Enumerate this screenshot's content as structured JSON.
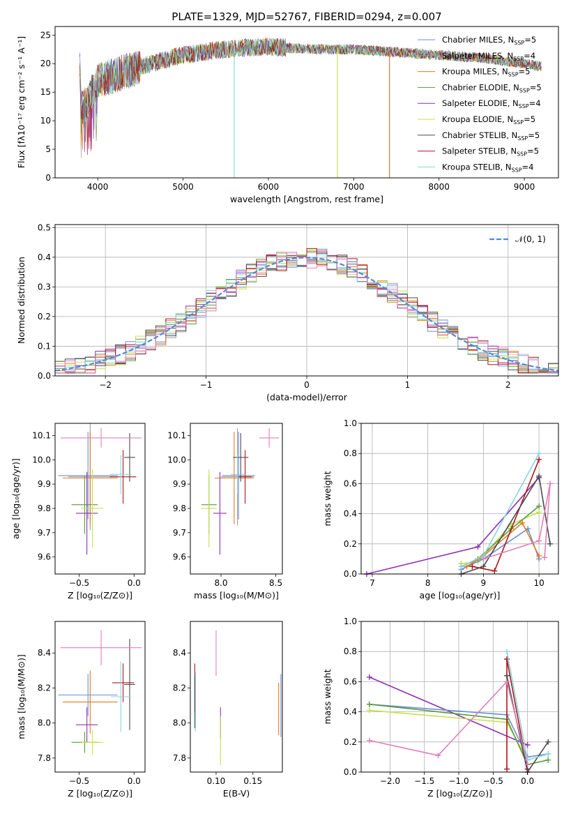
{
  "title": "PLATE=1329, MJD=52767, FIBERID=0294, z=0.007",
  "colors": {
    "Chabrier MILES": "#6a8fd6",
    "Salpeter MILES": "#9e9e9e",
    "Kroupa MILES": "#e07b20",
    "Chabrier ELODIE": "#5a9a3a",
    "Salpeter ELODIE": "#8e2fb5",
    "Kroupa ELODIE": "#c8e04a",
    "Chabrier STELIB": "#4a4a4a",
    "Salpeter STELIB": "#b0141a",
    "Kroupa STELIB": "#86d6e0",
    "pink": "#e07fb8",
    "normal": "#4f8bd6"
  },
  "chart_data": [
    {
      "id": "spectrum",
      "type": "line",
      "title": "PLATE=1329, MJD=52767, FIBERID=0294, z=0.007",
      "xlabel": "wavelength [Angstrom, rest frame]",
      "ylabel": "Flux [fλ10⁻¹⁷ erg cm⁻² s⁻¹ A⁻¹]",
      "xlim": [
        3500,
        9400
      ],
      "ylim": [
        0,
        26.5
      ],
      "xticks": [
        "4000",
        "5000",
        "6000",
        "7000",
        "8000",
        "9000"
      ],
      "yticks": [
        "0",
        "5",
        "10",
        "15",
        "20",
        "25"
      ],
      "legend_position": "top-right",
      "legend": [
        {
          "name": "Chabrier MILES",
          "ssp": "5"
        },
        {
          "name": "Salpeter MILES",
          "ssp": "4"
        },
        {
          "name": "Kroupa MILES",
          "ssp": "5"
        },
        {
          "name": "Chabrier ELODIE",
          "ssp": "5"
        },
        {
          "name": "Salpeter ELODIE",
          "ssp": "4"
        },
        {
          "name": "Kroupa ELODIE",
          "ssp": "5"
        },
        {
          "name": "Chabrier STELIB",
          "ssp": "5"
        },
        {
          "name": "Salpeter STELIB",
          "ssp": "5"
        },
        {
          "name": "Kroupa STELIB",
          "ssp": "4"
        }
      ],
      "continuum": [
        [
          3800,
          12
        ],
        [
          3900,
          14
        ],
        [
          4000,
          17
        ],
        [
          4200,
          18
        ],
        [
          4500,
          19.5
        ],
        [
          5000,
          21.5
        ],
        [
          5500,
          22.5
        ],
        [
          6000,
          23
        ],
        [
          6500,
          22.5
        ],
        [
          7000,
          22.5
        ],
        [
          7500,
          22
        ],
        [
          8000,
          21.5
        ],
        [
          8500,
          21
        ],
        [
          9000,
          20
        ],
        [
          9200,
          19.5
        ]
      ],
      "dips": [
        {
          "x": 5600,
          "y": 0,
          "series": "Kroupa STELIB"
        },
        {
          "x": 6810,
          "y": 0,
          "series": "Kroupa ELODIE"
        },
        {
          "x": 7420,
          "y": 0,
          "series": "Kroupa MILES"
        }
      ]
    },
    {
      "id": "residuals",
      "type": "bar",
      "xlabel": "(data-model)/error",
      "ylabel": "Normed distribution",
      "xlim": [
        -2.5,
        2.5
      ],
      "ylim": [
        0,
        0.51
      ],
      "xticks": [
        "−2",
        "−1",
        "0",
        "1",
        "2"
      ],
      "yticks": [
        "0.0",
        "0.1",
        "0.2",
        "0.3",
        "0.4",
        "0.5"
      ],
      "bin_width": 0.1,
      "bin_start": -2.5,
      "legend": "𝒩(0, 1)",
      "legend_position": "top-right"
    },
    {
      "id": "age-vs-Z",
      "type": "scatter",
      "xlabel": "Z [log₁₀(Z/Z⊙)]",
      "ylabel": "age  [log₁₀(age/yr)]",
      "xlim": [
        -0.72,
        0.1
      ],
      "ylim": [
        9.53,
        10.15
      ],
      "xticks": [
        "−0.5",
        "0.0"
      ],
      "yticks": [
        "9.6",
        "9.7",
        "9.8",
        "9.9",
        "10.0",
        "10.1"
      ],
      "points": [
        {
          "series": "Chabrier MILES",
          "x": -0.42,
          "xerr": 0.27,
          "y": 9.935,
          "yerr": 0.18
        },
        {
          "series": "Salpeter MILES",
          "x": -0.4,
          "xerr": 0.2,
          "y": 9.93,
          "yerr": 0.22
        },
        {
          "series": "Kroupa MILES",
          "x": -0.4,
          "xerr": 0.25,
          "y": 9.925,
          "yerr": 0.19
        },
        {
          "series": "Chabrier ELODIE",
          "x": -0.45,
          "xerr": 0.12,
          "y": 9.815,
          "yerr": 0.12
        },
        {
          "series": "Salpeter ELODIE",
          "x": -0.43,
          "xerr": 0.1,
          "y": 9.78,
          "yerr": 0.17
        },
        {
          "series": "Kroupa ELODIE",
          "x": -0.38,
          "xerr": 0.1,
          "y": 9.8,
          "yerr": 0.16
        },
        {
          "series": "Chabrier STELIB",
          "x": -0.04,
          "xerr": 0.05,
          "y": 10.01,
          "yerr": 0.1
        },
        {
          "series": "Salpeter STELIB",
          "x": -0.1,
          "xerr": 0.12,
          "y": 9.93,
          "yerr": 0.11
        },
        {
          "series": "Kroupa STELIB",
          "x": -0.12,
          "xerr": 0.1,
          "y": 9.94,
          "yerr": 0.08
        },
        {
          "series": "pink",
          "x": -0.3,
          "xerr": 0.37,
          "y": 10.09,
          "yerr": 0.04
        }
      ]
    },
    {
      "id": "age-vs-mass",
      "type": "scatter",
      "xlabel": "mass [log₁₀(M/M⊙)]",
      "ylabel": "",
      "xlim": [
        7.72,
        8.56
      ],
      "ylim": [
        9.53,
        10.15
      ],
      "xticks": [
        "8.0",
        "8.5"
      ],
      "yticks": [
        "9.6",
        "9.7",
        "9.8",
        "9.9",
        "10.0",
        "10.1"
      ],
      "points": [
        {
          "series": "Chabrier MILES",
          "x": 8.16,
          "xerr": 0.15,
          "y": 9.935,
          "yerr": 0.18
        },
        {
          "series": "Salpeter MILES",
          "x": 8.15,
          "xerr": 0.15,
          "y": 9.93,
          "yerr": 0.2
        },
        {
          "series": "Kroupa MILES",
          "x": 8.12,
          "xerr": 0.18,
          "y": 9.925,
          "yerr": 0.19
        },
        {
          "series": "Chabrier ELODIE",
          "x": 7.89,
          "xerr": 0.07,
          "y": 9.815,
          "yerr": 0.12
        },
        {
          "series": "Salpeter ELODIE",
          "x": 7.99,
          "xerr": 0.06,
          "y": 9.78,
          "yerr": 0.17
        },
        {
          "series": "Kroupa ELODIE",
          "x": 7.89,
          "xerr": 0.07,
          "y": 9.8,
          "yerr": 0.16
        },
        {
          "series": "Chabrier STELIB",
          "x": 8.18,
          "xerr": 0.07,
          "y": 10.01,
          "yerr": 0.1
        },
        {
          "series": "Salpeter STELIB",
          "x": 8.22,
          "xerr": 0.06,
          "y": 9.93,
          "yerr": 0.11
        },
        {
          "series": "Kroupa STELIB",
          "x": 8.15,
          "xerr": 0.06,
          "y": 9.94,
          "yerr": 0.08
        },
        {
          "series": "pink",
          "x": 8.44,
          "xerr": 0.09,
          "y": 10.09,
          "yerr": 0.04
        }
      ]
    },
    {
      "id": "weight-vs-age",
      "type": "line",
      "xlabel": "age  [log₁₀(age/yr)]",
      "ylabel": "mass weight",
      "xlim": [
        6.8,
        10.35
      ],
      "ylim": [
        0,
        1
      ],
      "xticks": [
        "7",
        "8",
        "9",
        "10"
      ],
      "yticks": [
        "0.0",
        "0.2",
        "0.4",
        "0.6",
        "0.8",
        "1.0"
      ],
      "series": [
        {
          "name": "Salpeter ELODIE",
          "points": [
            [
              6.9,
              0.0
            ],
            [
              8.9,
              0.18
            ],
            [
              10.0,
              0.64
            ]
          ]
        },
        {
          "name": "Kroupa ELODIE",
          "points": [
            [
              8.6,
              0.07
            ],
            [
              8.9,
              0.08
            ],
            [
              9.5,
              0.33
            ],
            [
              10.0,
              0.41
            ]
          ]
        },
        {
          "name": "Chabrier ELODIE",
          "points": [
            [
              8.6,
              0.05
            ],
            [
              8.9,
              0.1
            ],
            [
              9.5,
              0.3
            ],
            [
              10.0,
              0.45
            ]
          ]
        },
        {
          "name": "Chabrier MILES",
          "points": [
            [
              8.6,
              0.03
            ],
            [
              9.0,
              0.1
            ],
            [
              9.8,
              0.3
            ],
            [
              10.0,
              0.1
            ]
          ]
        },
        {
          "name": "Kroupa MILES",
          "points": [
            [
              8.7,
              0.05
            ],
            [
              9.0,
              0.12
            ],
            [
              9.7,
              0.34
            ],
            [
              10.0,
              0.12
            ]
          ]
        },
        {
          "name": "Salpeter STELIB",
          "points": [
            [
              8.8,
              0.05
            ],
            [
              9.2,
              0.02
            ],
            [
              10.0,
              0.76
            ]
          ]
        },
        {
          "name": "Chabrier STELIB",
          "points": [
            [
              8.6,
              0.0
            ],
            [
              9.0,
              0.05
            ],
            [
              10.0,
              0.65
            ],
            [
              10.2,
              0.2
            ]
          ]
        },
        {
          "name": "Kroupa STELIB",
          "points": [
            [
              8.6,
              0.05
            ],
            [
              9.0,
              0.12
            ],
            [
              10.0,
              0.8
            ]
          ]
        },
        {
          "name": "pink",
          "points": [
            [
              9.0,
              0.1
            ],
            [
              10.0,
              0.22
            ],
            [
              10.2,
              0.6
            ],
            [
              10.1,
              0.11
            ]
          ]
        }
      ]
    },
    {
      "id": "mass-vs-Z",
      "type": "scatter",
      "xlabel": "Z [log₁₀(Z/Z⊙)]",
      "ylabel": "mass [log₁₀(M/M⊙)]",
      "xlim": [
        -0.72,
        0.1
      ],
      "ylim": [
        7.72,
        8.58
      ],
      "xticks": [
        "−0.5",
        "0.0"
      ],
      "yticks": [
        "7.8",
        "8.0",
        "8.2",
        "8.4"
      ],
      "points": [
        {
          "series": "Chabrier MILES",
          "x": -0.42,
          "xerr": 0.27,
          "y": 8.16,
          "yerr": 0.12
        },
        {
          "series": "Kroupa MILES",
          "x": -0.4,
          "xerr": 0.25,
          "y": 8.12,
          "yerr": 0.18
        },
        {
          "series": "Chabrier ELODIE",
          "x": -0.45,
          "xerr": 0.12,
          "y": 7.89,
          "yerr": 0.06
        },
        {
          "series": "Salpeter ELODIE",
          "x": -0.43,
          "xerr": 0.1,
          "y": 7.99,
          "yerr": 0.1
        },
        {
          "series": "Kroupa ELODIE",
          "x": -0.38,
          "xerr": 0.1,
          "y": 7.89,
          "yerr": 0.07
        },
        {
          "series": "Chabrier STELIB",
          "x": -0.04,
          "xerr": 0.05,
          "y": 8.22,
          "yerr": 0.26
        },
        {
          "series": "Salpeter STELIB",
          "x": -0.1,
          "xerr": 0.1,
          "y": 8.23,
          "yerr": 0.11
        },
        {
          "series": "Kroupa STELIB",
          "x": -0.12,
          "xerr": 0.09,
          "y": 8.15,
          "yerr": 0.2
        },
        {
          "series": "pink",
          "x": -0.3,
          "xerr": 0.37,
          "y": 8.43,
          "yerr": 0.1
        }
      ]
    },
    {
      "id": "mass-vs-EBV",
      "type": "scatter",
      "xlabel": "E(B-V)",
      "ylabel": "",
      "xlim": [
        0.065,
        0.19
      ],
      "ylim": [
        7.72,
        8.58
      ],
      "xticks": [
        "0.10",
        "0.15"
      ],
      "yticks": [
        "7.8",
        "8.0",
        "8.2",
        "8.4"
      ],
      "points": [
        {
          "series": "Salpeter STELIB",
          "x": 0.071,
          "y": 8.2,
          "yerr": 0.14
        },
        {
          "series": "Chabrier STELIB",
          "x": 0.071,
          "y": 8.12,
          "yerr": 0.15
        },
        {
          "series": "Kroupa STELIB",
          "x": 0.072,
          "y": 8.12,
          "yerr": 0.17
        },
        {
          "series": "pink",
          "x": 0.1,
          "y": 8.4,
          "yerr": 0.13
        },
        {
          "series": "Salpeter ELODIE",
          "x": 0.106,
          "y": 8.0,
          "yerr": 0.09
        },
        {
          "series": "Kroupa ELODIE",
          "x": 0.106,
          "y": 7.9,
          "yerr": 0.14
        },
        {
          "series": "Kroupa MILES",
          "x": 0.185,
          "y": 8.08,
          "yerr": 0.15
        },
        {
          "series": "Chabrier MILES",
          "x": 0.188,
          "y": 8.1,
          "yerr": 0.18
        }
      ]
    },
    {
      "id": "weight-vs-Z",
      "type": "line",
      "xlabel": "Z [log₁₀(Z/Z⊙)]",
      "ylabel": "mass weight",
      "xlim": [
        -2.42,
        0.45
      ],
      "ylim": [
        0,
        1
      ],
      "xticks": [
        "−2.0",
        "−1.5",
        "−1.0",
        "−0.5",
        "0.0"
      ],
      "yticks": [
        "0.0",
        "0.2",
        "0.4",
        "0.6",
        "0.8",
        "1.0"
      ],
      "series": [
        {
          "name": "Salpeter ELODIE",
          "points": [
            [
              -2.3,
              0.63
            ],
            [
              0.0,
              0.18
            ]
          ]
        },
        {
          "name": "Kroupa ELODIE",
          "points": [
            [
              -2.3,
              0.41
            ],
            [
              -0.3,
              0.33
            ],
            [
              0.0,
              0.08
            ]
          ]
        },
        {
          "name": "Chabrier MILES",
          "points": [
            [
              -2.3,
              0.45
            ],
            [
              -0.3,
              0.38
            ],
            [
              0.0,
              0.1
            ],
            [
              0.3,
              0.12
            ]
          ]
        },
        {
          "name": "Chabrier ELODIE",
          "points": [
            [
              -2.3,
              0.45
            ],
            [
              -0.3,
              0.35
            ],
            [
              0.0,
              0.05
            ],
            [
              0.3,
              0.08
            ]
          ]
        },
        {
          "name": "Salpeter STELIB",
          "points": [
            [
              -0.3,
              0.02
            ],
            [
              -0.3,
              0.75
            ],
            [
              0.0,
              0.02
            ]
          ]
        },
        {
          "name": "Chabrier STELIB",
          "points": [
            [
              -0.3,
              0.64
            ],
            [
              0.0,
              0.0
            ],
            [
              0.3,
              0.2
            ]
          ]
        },
        {
          "name": "Kroupa STELIB",
          "points": [
            [
              -0.3,
              0.8
            ],
            [
              0.0,
              0.08
            ],
            [
              0.3,
              0.12
            ]
          ]
        },
        {
          "name": "pink",
          "points": [
            [
              -2.3,
              0.21
            ],
            [
              -1.3,
              0.11
            ],
            [
              -0.3,
              0.6
            ],
            [
              0.0,
              0.05
            ]
          ]
        }
      ]
    }
  ]
}
